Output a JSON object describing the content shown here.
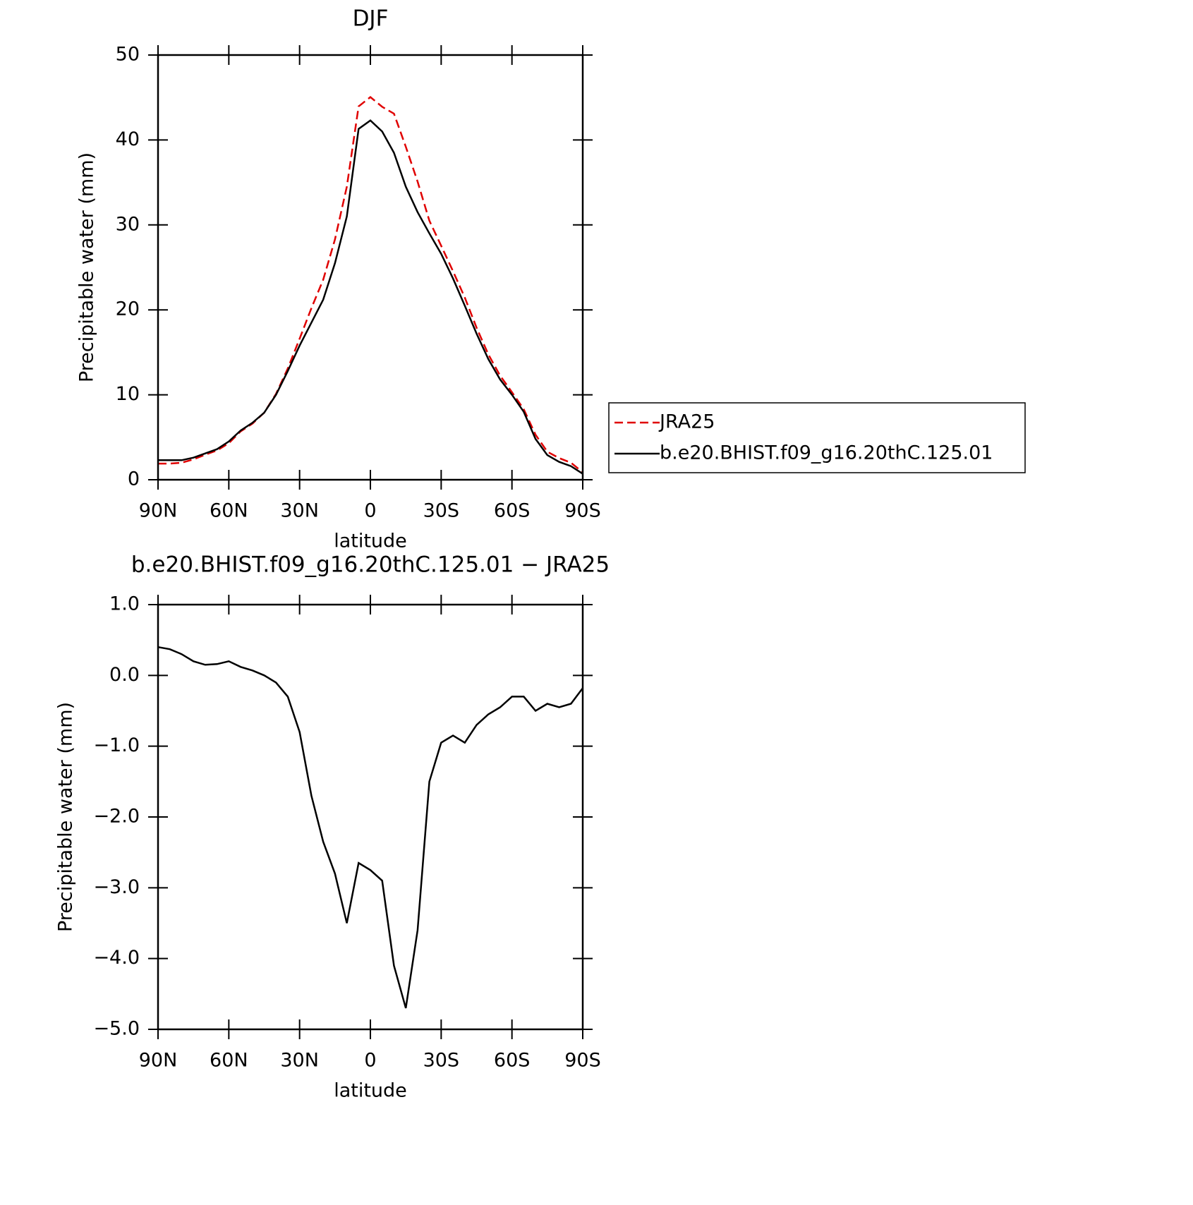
{
  "chart_data": [
    {
      "type": "line",
      "title": "DJF",
      "xlabel": "latitude",
      "ylabel": "Precipitable water (mm)",
      "x": [
        90,
        85,
        80,
        75,
        70,
        65,
        60,
        55,
        50,
        45,
        40,
        35,
        30,
        25,
        20,
        15,
        10,
        5,
        0,
        -5,
        -10,
        -15,
        -20,
        -25,
        -30,
        -35,
        -40,
        -45,
        -50,
        -55,
        -60,
        -65,
        -70,
        -75,
        -80,
        -85,
        -90
      ],
      "series": [
        {
          "name": "JRA25",
          "color": "#e00000",
          "dash": true,
          "values": [
            1.9,
            1.9,
            2.0,
            2.4,
            2.95,
            3.45,
            4.3,
            5.7,
            6.6,
            7.9,
            10.1,
            13.1,
            16.6,
            20.2,
            23.55,
            28.3,
            34.5,
            43.95,
            45.05,
            43.9,
            43.1,
            39.2,
            35.1,
            30.5,
            27.55,
            24.55,
            21.45,
            17.9,
            14.75,
            12.25,
            10.3,
            8.3,
            5.3,
            3.3,
            2.55,
            2.0,
            0.88
          ]
        },
        {
          "name": "b.e20.BHIST.f09_g16.20thC.125.01",
          "color": "#000000",
          "dash": false,
          "values": [
            2.3,
            2.3,
            2.3,
            2.6,
            3.1,
            3.6,
            4.5,
            5.8,
            6.7,
            7.9,
            10.0,
            12.8,
            15.8,
            18.5,
            21.2,
            25.5,
            31.0,
            41.3,
            42.3,
            41.0,
            38.5,
            34.5,
            31.5,
            29.0,
            26.6,
            23.7,
            20.5,
            17.2,
            14.2,
            11.8,
            10.0,
            8.0,
            4.8,
            2.9,
            2.1,
            1.6,
            0.7
          ]
        }
      ],
      "xlim": [
        90,
        -90
      ],
      "xticks": [
        {
          "value": 90,
          "label": "90N"
        },
        {
          "value": 60,
          "label": "60N"
        },
        {
          "value": 30,
          "label": "30N"
        },
        0,
        {
          "value": -30,
          "label": "30S"
        },
        {
          "value": -60,
          "label": "60S"
        },
        {
          "value": -90,
          "label": "90S"
        }
      ],
      "ylim": [
        0,
        50
      ],
      "yticks": [
        0,
        10,
        20,
        30,
        40,
        50
      ],
      "legend": "right"
    },
    {
      "type": "line",
      "title": "b.e20.BHIST.f09_g16.20thC.125.01 − JRA25",
      "xlabel": "latitude",
      "ylabel": "Precipitable water (mm)",
      "x": [
        90,
        85,
        80,
        75,
        70,
        65,
        60,
        55,
        50,
        45,
        40,
        35,
        30,
        25,
        20,
        15,
        10,
        5,
        0,
        -5,
        -10,
        -15,
        -20,
        -25,
        -30,
        -35,
        -40,
        -45,
        -50,
        -55,
        -60,
        -65,
        -70,
        -75,
        -80,
        -85,
        -90
      ],
      "series": [
        {
          "color": "#000000",
          "dash": false,
          "values": [
            0.4,
            0.37,
            0.3,
            0.2,
            0.15,
            0.16,
            0.2,
            0.12,
            0.07,
            0.0,
            -0.1,
            -0.3,
            -0.8,
            -1.7,
            -2.35,
            -2.8,
            -3.5,
            -2.65,
            -2.75,
            -2.9,
            -4.1,
            -4.7,
            -3.6,
            -1.5,
            -0.95,
            -0.85,
            -0.95,
            -0.7,
            -0.55,
            -0.45,
            -0.3,
            -0.3,
            -0.5,
            -0.4,
            -0.45,
            -0.4,
            -0.18
          ]
        }
      ],
      "xlim": [
        90,
        -90
      ],
      "xticks": [
        {
          "value": 90,
          "label": "90N"
        },
        {
          "value": 60,
          "label": "60N"
        },
        {
          "value": 30,
          "label": "30N"
        },
        0,
        {
          "value": -30,
          "label": "30S"
        },
        {
          "value": -60,
          "label": "60S"
        },
        {
          "value": -90,
          "label": "90S"
        }
      ],
      "ylim": [
        -5,
        1
      ],
      "yticks": [
        {
          "value": -5,
          "label": "−5.0"
        },
        {
          "value": -4,
          "label": "−4.0"
        },
        {
          "value": -3,
          "label": "−3.0"
        },
        {
          "value": -2,
          "label": "−2.0"
        },
        {
          "value": -1,
          "label": "−1.0"
        },
        {
          "value": 0,
          "label": "0.0"
        },
        {
          "value": 1,
          "label": "1.0"
        }
      ]
    }
  ]
}
